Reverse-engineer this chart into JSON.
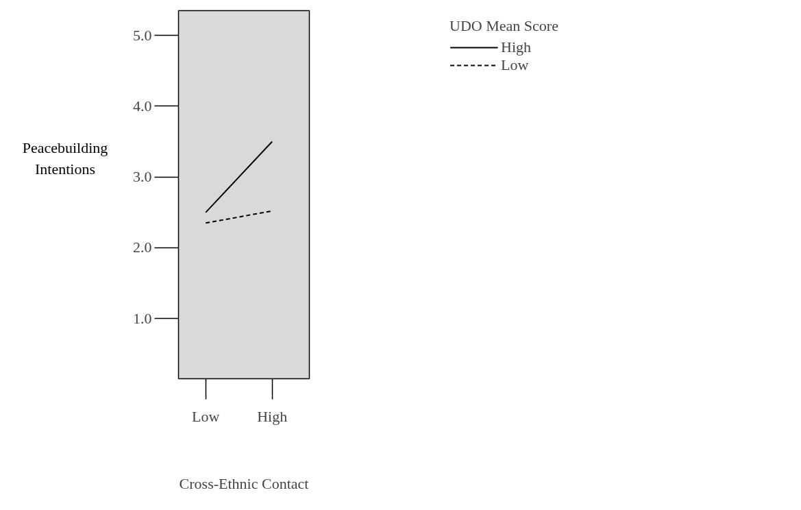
{
  "chart_data": {
    "type": "line",
    "xlabel": "Cross-Ethnic Contact",
    "ylabel": "Peacebuilding Intentions",
    "legend_title": "UDO Mean Score",
    "categories": [
      "Low",
      "High"
    ],
    "series": [
      {
        "name": "High",
        "color": "#000000",
        "values": [
          2.5,
          3.5
        ],
        "line_style": "solid"
      },
      {
        "name": "Low",
        "color": "#000000",
        "values": [
          2.35,
          2.52
        ],
        "line_style": "dashed"
      }
    ],
    "ylim": [
      0.15,
      5.35
    ],
    "yticks": [
      {
        "value": 1,
        "label": "1.0"
      },
      {
        "value": 2,
        "label": "2.0"
      },
      {
        "value": 3,
        "label": "3.0"
      },
      {
        "value": 4,
        "label": "4.0"
      },
      {
        "value": 5,
        "label": "5.0"
      }
    ],
    "grid": false,
    "legend": "top right",
    "marker": "none"
  }
}
